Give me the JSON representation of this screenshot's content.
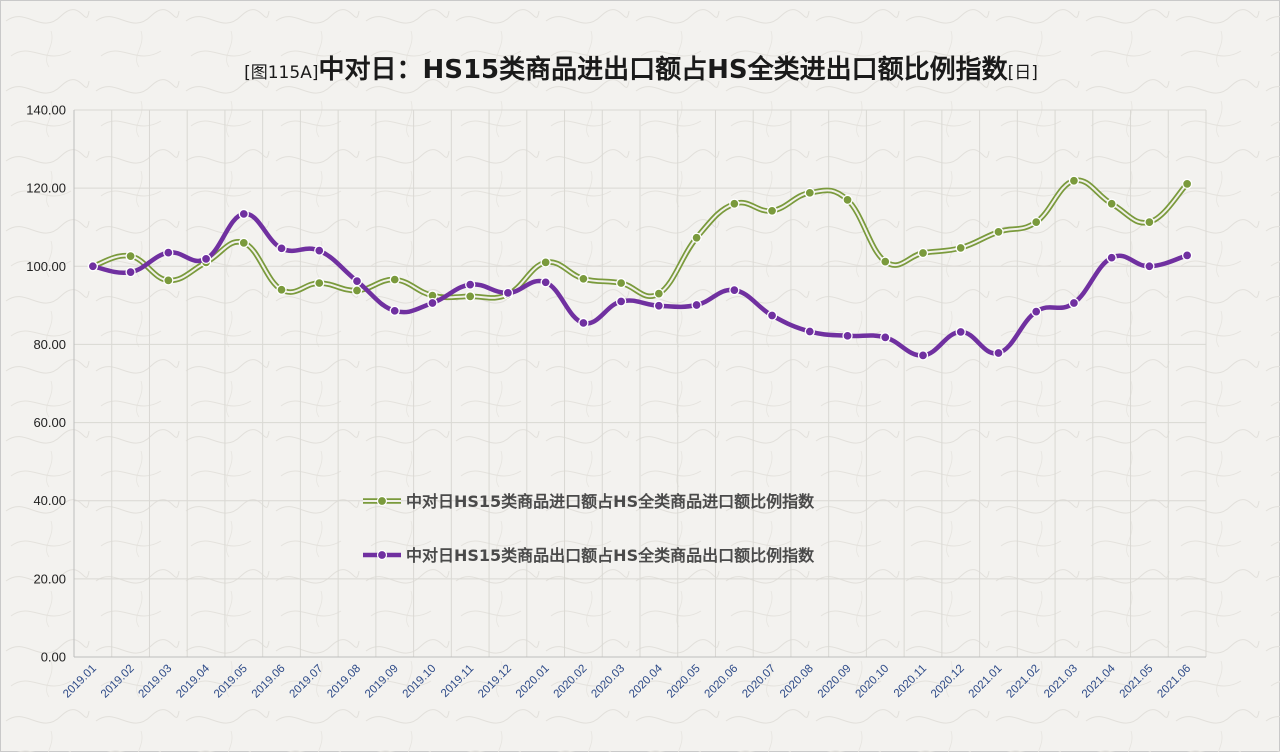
{
  "chart_data": {
    "type": "line",
    "title_main": "中对日：HS15类商品进出口额占HS全类进出口额比例指数",
    "title_prefix": "[图115A]",
    "title_suffix": "[日]",
    "ylim": [
      0,
      140
    ],
    "yticks": [
      "0.00",
      "20.00",
      "40.00",
      "60.00",
      "80.00",
      "100.00",
      "120.00",
      "140.00"
    ],
    "grid": true,
    "legend_position": "center",
    "categories": [
      "2019.01",
      "2019.02",
      "2019.03",
      "2019.04",
      "2019.05",
      "2019.06",
      "2019.07",
      "2019.08",
      "2019.09",
      "2019.10",
      "2019.11",
      "2019.12",
      "2020.01",
      "2020.02",
      "2020.03",
      "2020.04",
      "2020.05",
      "2020.06",
      "2020.07",
      "2020.08",
      "2020.09",
      "2020.10",
      "2020.11",
      "2020.12",
      "2021.01",
      "2021.02",
      "2021.03",
      "2021.04",
      "2021.05",
      "2021.06"
    ],
    "series": [
      {
        "name": "中对日HS15类商品进口额占HS全类商品进口额比例指数",
        "color": "#7a9a3c",
        "style": "double",
        "values": [
          100.0,
          102.6,
          96.4,
          101.0,
          106.0,
          94.0,
          95.7,
          93.8,
          96.6,
          92.5,
          92.3,
          92.8,
          101.0,
          96.8,
          95.7,
          93.0,
          107.3,
          116.0,
          114.2,
          118.8,
          117.0,
          101.2,
          103.4,
          104.7,
          108.8,
          111.3,
          121.9,
          116.0,
          111.3,
          121.1
        ]
      },
      {
        "name": "中对日HS15类商品出口额占HS全类商品出口额比例指数",
        "color": "#7030a0",
        "style": "solid",
        "values": [
          100.0,
          98.5,
          103.5,
          101.9,
          113.4,
          104.6,
          104.0,
          96.2,
          88.6,
          90.6,
          95.3,
          93.2,
          95.9,
          85.5,
          91.0,
          89.9,
          90.1,
          93.9,
          87.4,
          83.3,
          82.2,
          81.8,
          77.2,
          83.2,
          77.8,
          88.4,
          90.6,
          102.2,
          100.0,
          102.8
        ]
      }
    ]
  }
}
